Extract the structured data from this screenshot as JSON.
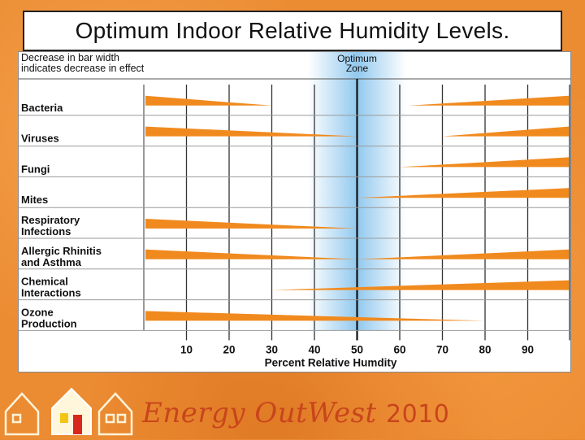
{
  "title": "Optimum Indoor Relative Humidity Levels.",
  "chart_data": {
    "type": "bar",
    "legend_note": [
      "Decrease in bar width",
      "indicates decrease in effect"
    ],
    "optimum_zone_label": [
      "Optimum",
      "Zone"
    ],
    "optimum_zone_range": [
      40,
      60
    ],
    "optimum_line_x": 50,
    "xlabel": "Percent Relative Humdity",
    "xlim": [
      0,
      100
    ],
    "x_ticks": [
      10,
      20,
      30,
      40,
      50,
      60,
      70,
      80,
      90
    ],
    "categories": [
      {
        "label": [
          "Bacteria"
        ],
        "left_end": 30,
        "right_start": 62
      },
      {
        "label": [
          "Viruses"
        ],
        "left_end": 50,
        "right_start": 70
      },
      {
        "label": [
          "Fungi"
        ],
        "left_end": null,
        "right_start": 60
      },
      {
        "label": [
          "Mites"
        ],
        "left_end": null,
        "right_start": 50
      },
      {
        "label": [
          "Respiratory",
          "Infections"
        ],
        "left_end": 50,
        "right_start": null
      },
      {
        "label": [
          "Allergic Rhinitis",
          "and Asthma"
        ],
        "left_end": 50,
        "right_start": 50
      },
      {
        "label": [
          "Chemical",
          "Interactions"
        ],
        "left_end": null,
        "right_start": 30
      },
      {
        "label": [
          "Ozone",
          "Production"
        ],
        "left_end": 80,
        "right_start": null
      }
    ],
    "colors": {
      "bar": "#f08a1e",
      "zone": "#8cc6ee",
      "grid": "#222222"
    }
  },
  "footer": {
    "brand": "Energy OutWest",
    "year": "2010"
  }
}
